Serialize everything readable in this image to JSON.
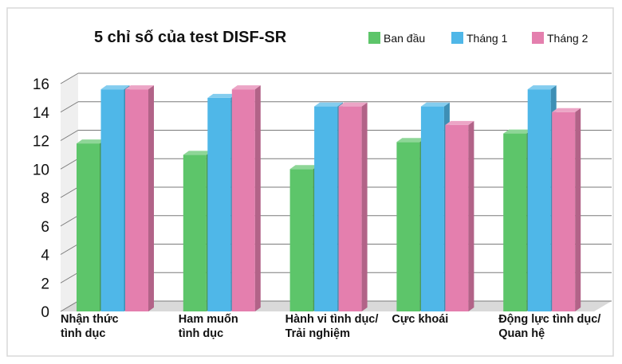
{
  "chart_data": {
    "type": "bar",
    "title": "5 chỉ số của test DISF-SR",
    "categories": [
      [
        "Nhận thức",
        "tình dục"
      ],
      [
        "Ham muốn",
        "tình dục"
      ],
      [
        "Hành vi tình dục/",
        "Trải nghiệm"
      ],
      [
        "Cực khoái"
      ],
      [
        "Động lực tình dục/",
        "Quan hệ"
      ]
    ],
    "series": [
      {
        "name": "Ban đầu",
        "color": "#5dc56a",
        "values": [
          11.8,
          11.0,
          10.0,
          11.9,
          12.5
        ]
      },
      {
        "name": "Tháng 1",
        "color": "#4fb7e8",
        "values": [
          15.6,
          15.0,
          14.4,
          14.4,
          15.6
        ]
      },
      {
        "name": "Tháng 2",
        "color": "#e47fae",
        "values": [
          15.6,
          15.6,
          14.4,
          13.1,
          14.0
        ]
      }
    ],
    "ylim": [
      0,
      16
    ],
    "yticks": [
      0,
      2,
      4,
      6,
      8,
      10,
      12,
      14,
      16
    ],
    "grid": true,
    "legend_position": "top-right",
    "three_d": true
  }
}
